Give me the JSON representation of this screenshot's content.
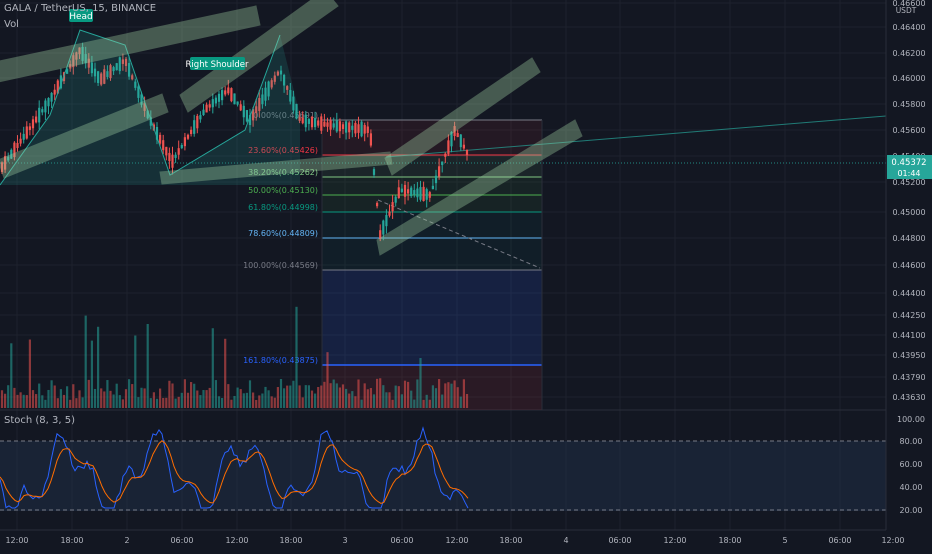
{
  "header": {
    "symbol": "GALA / TetherUS, 15, BINANCE",
    "volume_label": "Vol",
    "stoch_label": "Stoch (8, 3, 5)"
  },
  "price_axis": {
    "unit": "USDT",
    "labels": [
      "0.46600",
      "0.46400",
      "0.46200",
      "0.46000",
      "0.45800",
      "0.45600",
      "0.45400",
      "0.45200",
      "0.45000",
      "0.44800",
      "0.44600",
      "0.44400",
      "0.44250",
      "0.44100",
      "0.43950",
      "0.43790",
      "0.43630"
    ],
    "current_price": "0.45372",
    "countdown": "01:44"
  },
  "stoch_axis": {
    "labels": [
      "100.00",
      "80.00",
      "60.00",
      "40.00",
      "20.00"
    ]
  },
  "time_axis": {
    "labels": [
      "12:00",
      "18:00",
      "2",
      "06:00",
      "12:00",
      "18:00",
      "3",
      "06:00",
      "12:00",
      "18:00",
      "4",
      "06:00",
      "12:00",
      "18:00",
      "5",
      "06:00",
      "12:00"
    ]
  },
  "annotations": {
    "head": "Head",
    "right_shoulder": "Right Shoulder"
  },
  "fib_levels": [
    {
      "label": "0.00%(0.45691)",
      "color": "#787b86"
    },
    {
      "label": "23.60%(0.45426)",
      "color": "#f23645"
    },
    {
      "label": "38.20%(0.45262)",
      "color": "#81c784"
    },
    {
      "label": "50.00%(0.45130)",
      "color": "#4caf50"
    },
    {
      "label": "61.80%(0.44998)",
      "color": "#089981"
    },
    {
      "label": "78.60%(0.44809)",
      "color": "#64b5f6"
    },
    {
      "label": "100.00%(0.44569)",
      "color": "#787b86"
    },
    {
      "label": "161.80%(0.43875)",
      "color": "#2962ff"
    }
  ],
  "colors": {
    "background": "#131722",
    "up": "#26a69a",
    "down": "#ef5350",
    "channel_fill": "#a5d6a7",
    "price_tag": "#26a69a",
    "stoch_k": "#2962ff",
    "stoch_d": "#ff6d00"
  }
}
